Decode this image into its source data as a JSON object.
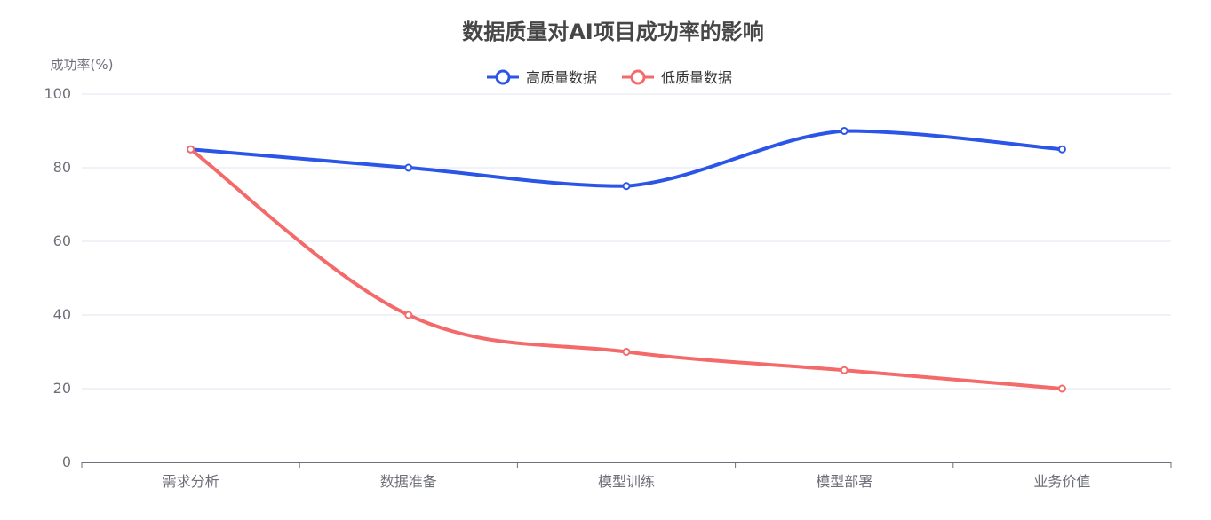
{
  "chart_data": {
    "type": "line",
    "title": "数据质量对AI项目成功率的影响",
    "xlabel": "",
    "ylabel": "成功率(%)",
    "categories": [
      "需求分析",
      "数据准备",
      "模型训练",
      "模型部署",
      "业务价值"
    ],
    "series": [
      {
        "name": "高质量数据",
        "color": "#2b55e6",
        "values": [
          85,
          80,
          75,
          90,
          85
        ]
      },
      {
        "name": "低质量数据",
        "color": "#f46a6a",
        "values": [
          85,
          40,
          30,
          25,
          20
        ]
      }
    ],
    "ylim": [
      0,
      100
    ],
    "yticks": [
      0,
      20,
      40,
      60,
      80,
      100
    ],
    "grid": true,
    "smooth": true,
    "legend_position": "top-center"
  },
  "colors": {
    "grid": "#e0e6f1",
    "axis": "#6e7079",
    "title": "#464646"
  }
}
